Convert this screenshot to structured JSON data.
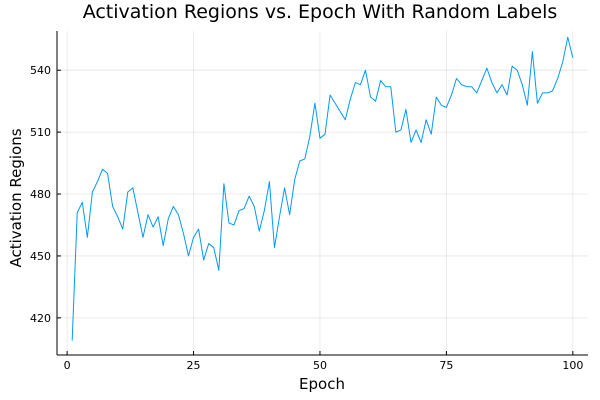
{
  "chart_data": {
    "type": "line",
    "title": "Activation Regions vs. Epoch With Random Labels",
    "xlabel": "Epoch",
    "ylabel": "Activation Regions",
    "xlim": [
      -2,
      103
    ],
    "ylim": [
      402,
      559
    ],
    "xticks": [
      0,
      25,
      50,
      75,
      100
    ],
    "yticks": [
      420,
      450,
      480,
      510,
      540
    ],
    "grid": true,
    "legend": "none",
    "series": [
      {
        "color": "#009af9",
        "x": [
          1,
          2,
          3,
          4,
          5,
          6,
          7,
          8,
          9,
          10,
          11,
          12,
          13,
          14,
          15,
          16,
          17,
          18,
          19,
          20,
          21,
          22,
          23,
          24,
          25,
          26,
          27,
          28,
          29,
          30,
          31,
          32,
          33,
          34,
          35,
          36,
          37,
          38,
          39,
          40,
          41,
          42,
          43,
          44,
          45,
          46,
          47,
          48,
          49,
          50,
          51,
          52,
          53,
          54,
          55,
          56,
          57,
          58,
          59,
          60,
          61,
          62,
          63,
          64,
          65,
          66,
          67,
          68,
          69,
          70,
          71,
          72,
          73,
          74,
          75,
          76,
          77,
          78,
          79,
          80,
          81,
          82,
          83,
          84,
          85,
          86,
          87,
          88,
          89,
          90,
          91,
          92,
          93,
          94,
          95,
          96,
          97,
          98,
          99,
          100
        ],
        "y": [
          409,
          471,
          476,
          459,
          481,
          486,
          492,
          490,
          474,
          469,
          463,
          481,
          483,
          471,
          459,
          470,
          464,
          469,
          455,
          468,
          474,
          470,
          461,
          450,
          459,
          463,
          448,
          456,
          454,
          443,
          485,
          466,
          465,
          472,
          473,
          479,
          474,
          462,
          472,
          486,
          454,
          469,
          483,
          470,
          487,
          496,
          497,
          508,
          524,
          507,
          509,
          528,
          524,
          520,
          516,
          526,
          534,
          533,
          540,
          527,
          525,
          535,
          532,
          532,
          510,
          511,
          521,
          505,
          511,
          505,
          516,
          509,
          527,
          523,
          522,
          528,
          536,
          533,
          532,
          532,
          529,
          535,
          541,
          534,
          529,
          533,
          528,
          542,
          540,
          533,
          523,
          549,
          524,
          529,
          529,
          530,
          536,
          544,
          556,
          546
        ]
      }
    ]
  }
}
